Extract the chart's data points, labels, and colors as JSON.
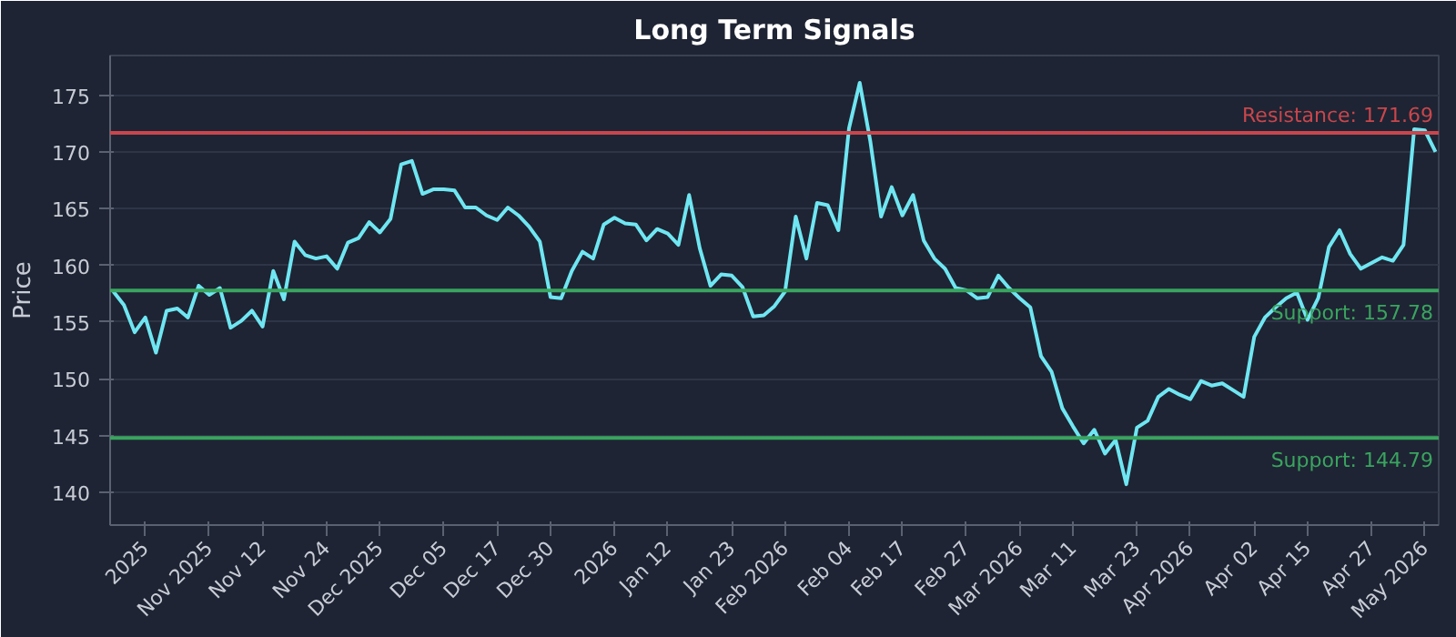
{
  "chart_data": {
    "type": "line",
    "title": "Long Term Signals",
    "ylabel": "Price",
    "series": [
      {
        "color": "#6fe6f2",
        "values": [
          157.7,
          156.5,
          154.1,
          155.4,
          152.3,
          156.0,
          156.2,
          155.4,
          158.2,
          157.4,
          158.0,
          154.5,
          155.1,
          156.0,
          154.6,
          159.5,
          157.0,
          162.1,
          160.9,
          160.6,
          160.8,
          159.7,
          162.0,
          162.4,
          163.8,
          162.9,
          164.1,
          168.9,
          169.2,
          166.3,
          166.7,
          166.7,
          166.6,
          165.1,
          165.1,
          164.4,
          164.0,
          165.1,
          164.4,
          163.4,
          162.1,
          157.2,
          157.1,
          159.5,
          161.2,
          160.6,
          163.6,
          164.2,
          163.7,
          163.6,
          162.2,
          163.2,
          162.8,
          161.8,
          166.2,
          161.5,
          158.2,
          159.2,
          159.1,
          158.1,
          155.5,
          155.6,
          156.4,
          157.7,
          164.3,
          160.6,
          165.5,
          165.3,
          163.1,
          172.1,
          176.1,
          170.9,
          164.3,
          166.9,
          164.4,
          166.2,
          162.2,
          160.6,
          159.7,
          158.0,
          157.8,
          157.1,
          157.2,
          159.1,
          158.0,
          157.1,
          156.3,
          152.0,
          150.6,
          147.4,
          145.8,
          144.3,
          145.5,
          143.4,
          144.6,
          140.7,
          145.7,
          146.3,
          148.4,
          149.1,
          148.6,
          148.2,
          149.8,
          149.4,
          149.6,
          149.0,
          148.4,
          153.7,
          155.4,
          156.3,
          157.1,
          157.6,
          155.2,
          157.1,
          161.6,
          163.1,
          161.0,
          159.7,
          160.2,
          160.7,
          160.4,
          161.8,
          172.0,
          171.9,
          170.0
        ]
      }
    ],
    "categories": [
      null,
      null,
      null,
      "2025",
      null,
      null,
      null,
      null,
      null,
      "Nov 2025",
      null,
      null,
      null,
      null,
      "Nov 12",
      null,
      null,
      null,
      null,
      null,
      "Nov 24",
      null,
      null,
      null,
      null,
      "Dec 2025",
      null,
      null,
      null,
      null,
      null,
      "Dec 05",
      null,
      null,
      null,
      null,
      "Dec 17",
      null,
      null,
      null,
      null,
      "Dec 30",
      null,
      null,
      null,
      null,
      null,
      "2026",
      null,
      null,
      null,
      null,
      "Jan 12",
      null,
      null,
      null,
      null,
      null,
      "Jan 23",
      null,
      null,
      null,
      null,
      "Feb 2026",
      null,
      null,
      null,
      null,
      null,
      "Feb 04",
      null,
      null,
      null,
      null,
      "Feb 17",
      null,
      null,
      null,
      null,
      null,
      "Feb 27",
      null,
      null,
      null,
      null,
      "Mar 2026",
      null,
      null,
      null,
      null,
      "Mar 11",
      null,
      null,
      null,
      null,
      null,
      "Mar 23",
      null,
      null,
      null,
      null,
      "Apr 2026",
      null,
      null,
      null,
      null,
      null,
      "Apr 02",
      null,
      null,
      null,
      null,
      "Apr 15",
      null,
      null,
      null,
      null,
      null,
      "Apr 27",
      null,
      null,
      null,
      null,
      "May 2026",
      null
    ],
    "ylim": [
      137.1,
      178.5
    ],
    "yticks": [
      140,
      145,
      150,
      155,
      160,
      165,
      170,
      175
    ],
    "grid": "y",
    "ref_lines": [
      {
        "axis": "y",
        "value": 171.69,
        "label": "Resistance: 171.69",
        "color": "#c9464c"
      },
      {
        "axis": "y",
        "value": 157.78,
        "label": "Support: 157.78",
        "color": "#3aa45f"
      },
      {
        "axis": "y",
        "value": 144.79,
        "label": "Support: 144.79",
        "color": "#3aa45f"
      }
    ]
  }
}
